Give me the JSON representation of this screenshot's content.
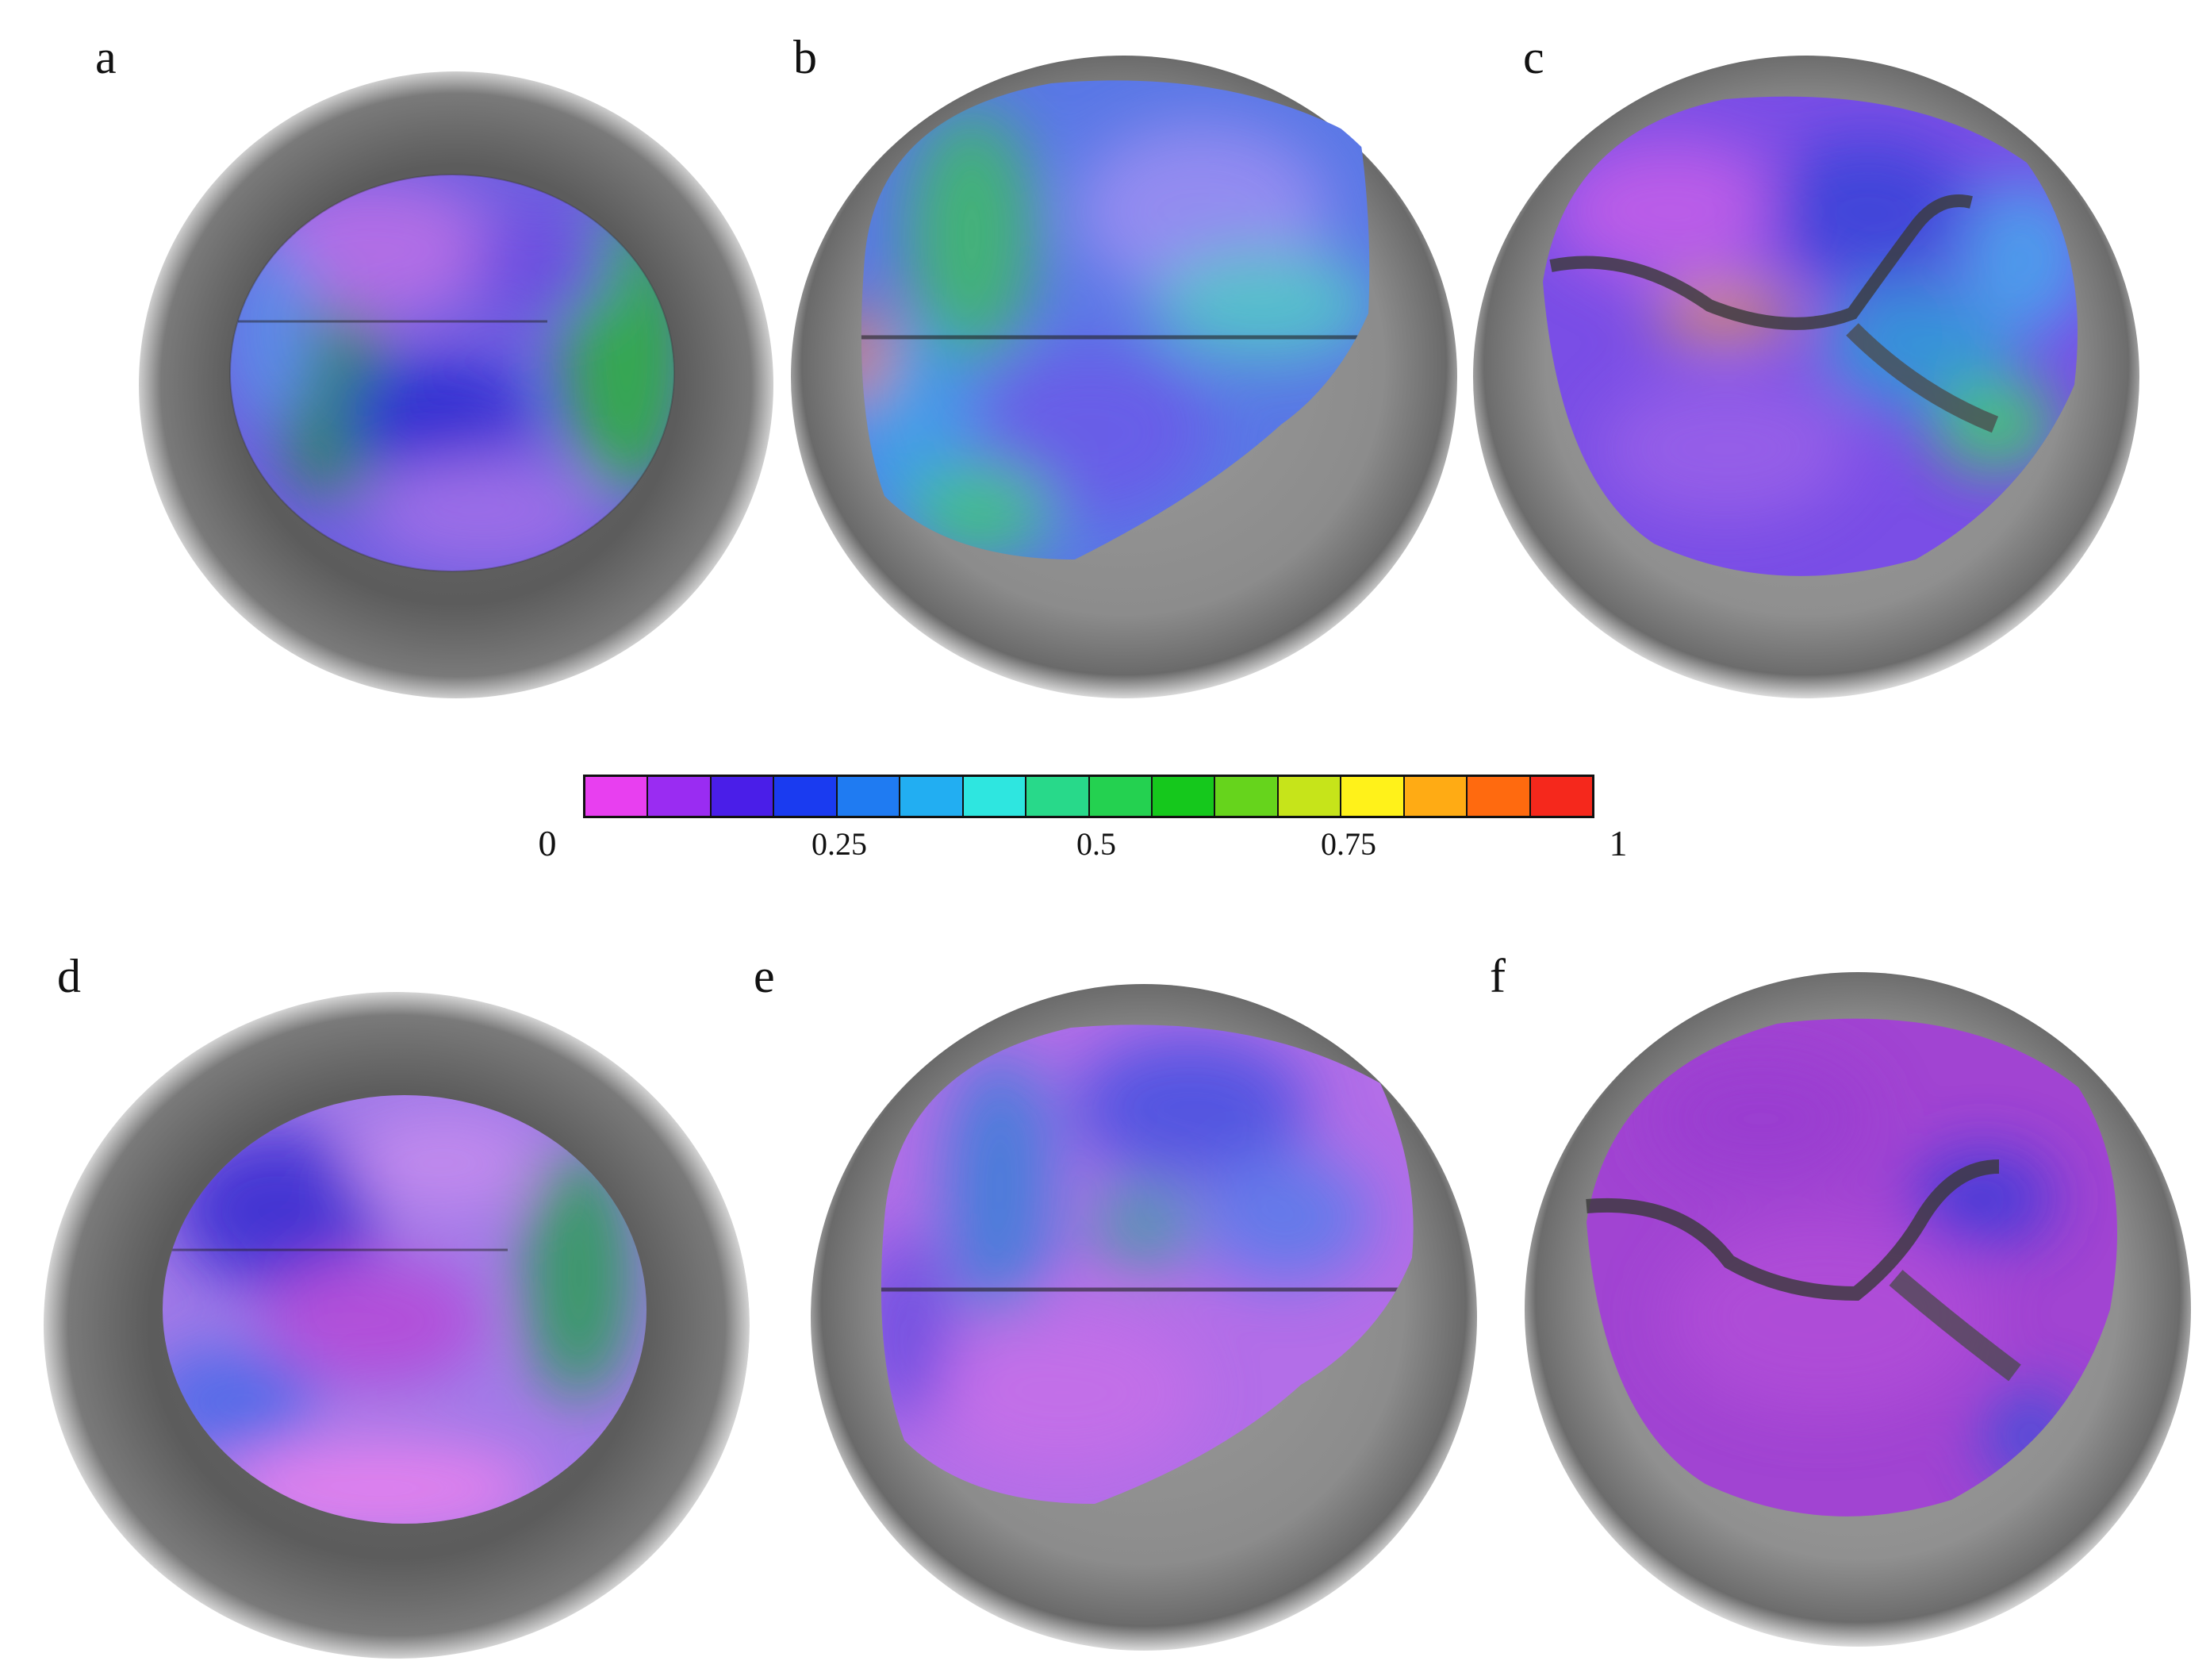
{
  "panels": [
    {
      "label": "a"
    },
    {
      "label": "b"
    },
    {
      "label": "c"
    },
    {
      "label": "d"
    },
    {
      "label": "e"
    },
    {
      "label": "f"
    }
  ],
  "colorbar": {
    "min_label": "0",
    "max_label": "1",
    "tick_labels": [
      "0.25",
      "0.5",
      "0.75"
    ],
    "colors": [
      "#e83ff0",
      "#9a2cf2",
      "#4a1ee8",
      "#1a3bf0",
      "#1f7bf2",
      "#22aef2",
      "#2ee6e0",
      "#28d98a",
      "#24d150",
      "#15c81c",
      "#66d41c",
      "#c6e41a",
      "#fff21a",
      "#ffab14",
      "#ff6a0f",
      "#f5281c"
    ]
  }
}
